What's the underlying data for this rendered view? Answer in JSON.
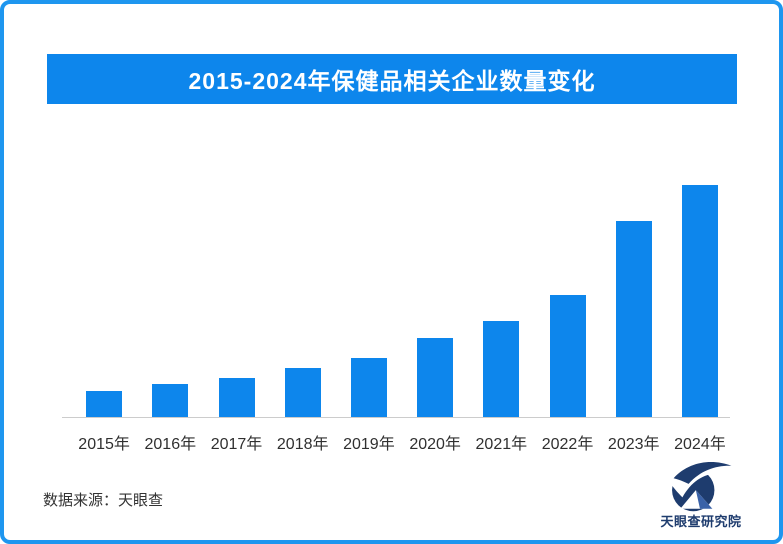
{
  "title": {
    "text": "2015-2024年保健品相关企业数量变化"
  },
  "chart_data": {
    "type": "bar",
    "title": "2015-2024年保健品相关企业数量变化",
    "categories": [
      "2015年",
      "2016年",
      "2017年",
      "2018年",
      "2019年",
      "2020年",
      "2021年",
      "2022年",
      "2023年",
      "2024年"
    ],
    "values": [
      11.2,
      14.2,
      16.8,
      21.1,
      25.4,
      34.1,
      41.4,
      52.6,
      84.5,
      100
    ],
    "values_unit": "relative height, tallest bar (2024) = 100; no numeric y-axis or data labels shown in image",
    "xlabel": "",
    "ylabel": "",
    "ylim": [
      0,
      100
    ],
    "grid": false,
    "legend": false,
    "bar_color": "#0d86ec",
    "axis_line_color": "#cccccc"
  },
  "footer": {
    "source_text": "数据来源：天眼查",
    "logo_text": "天眼查研究院"
  },
  "colors": {
    "accent_blue": "#0d86ec",
    "border_blue": "#1e96ef",
    "logo_navy": "#1e3c6e",
    "logo_blue": "#3a62a8",
    "axis_gray": "#cccccc",
    "text_dark": "#303030"
  }
}
